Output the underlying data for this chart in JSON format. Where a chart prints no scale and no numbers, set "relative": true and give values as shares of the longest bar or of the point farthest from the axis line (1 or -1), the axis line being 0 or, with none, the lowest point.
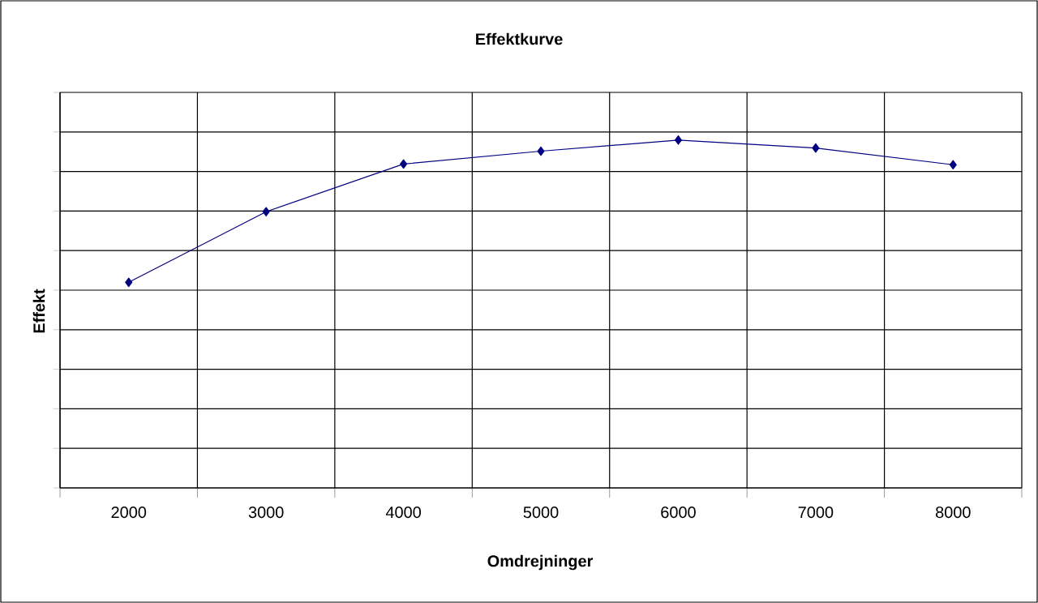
{
  "chart_data": {
    "type": "line",
    "title": "Effektkurve",
    "xlabel": "Omdrejninger",
    "ylabel": "Effekt",
    "categories": [
      "2000",
      "3000",
      "4000",
      "5000",
      "6000",
      "7000",
      "8000"
    ],
    "values": [
      0.591,
      0.794,
      0.931,
      0.968,
      1,
      0.977,
      0.929
    ],
    "color": "#000080",
    "marker": "diamond",
    "grid": true,
    "relative": true
  }
}
